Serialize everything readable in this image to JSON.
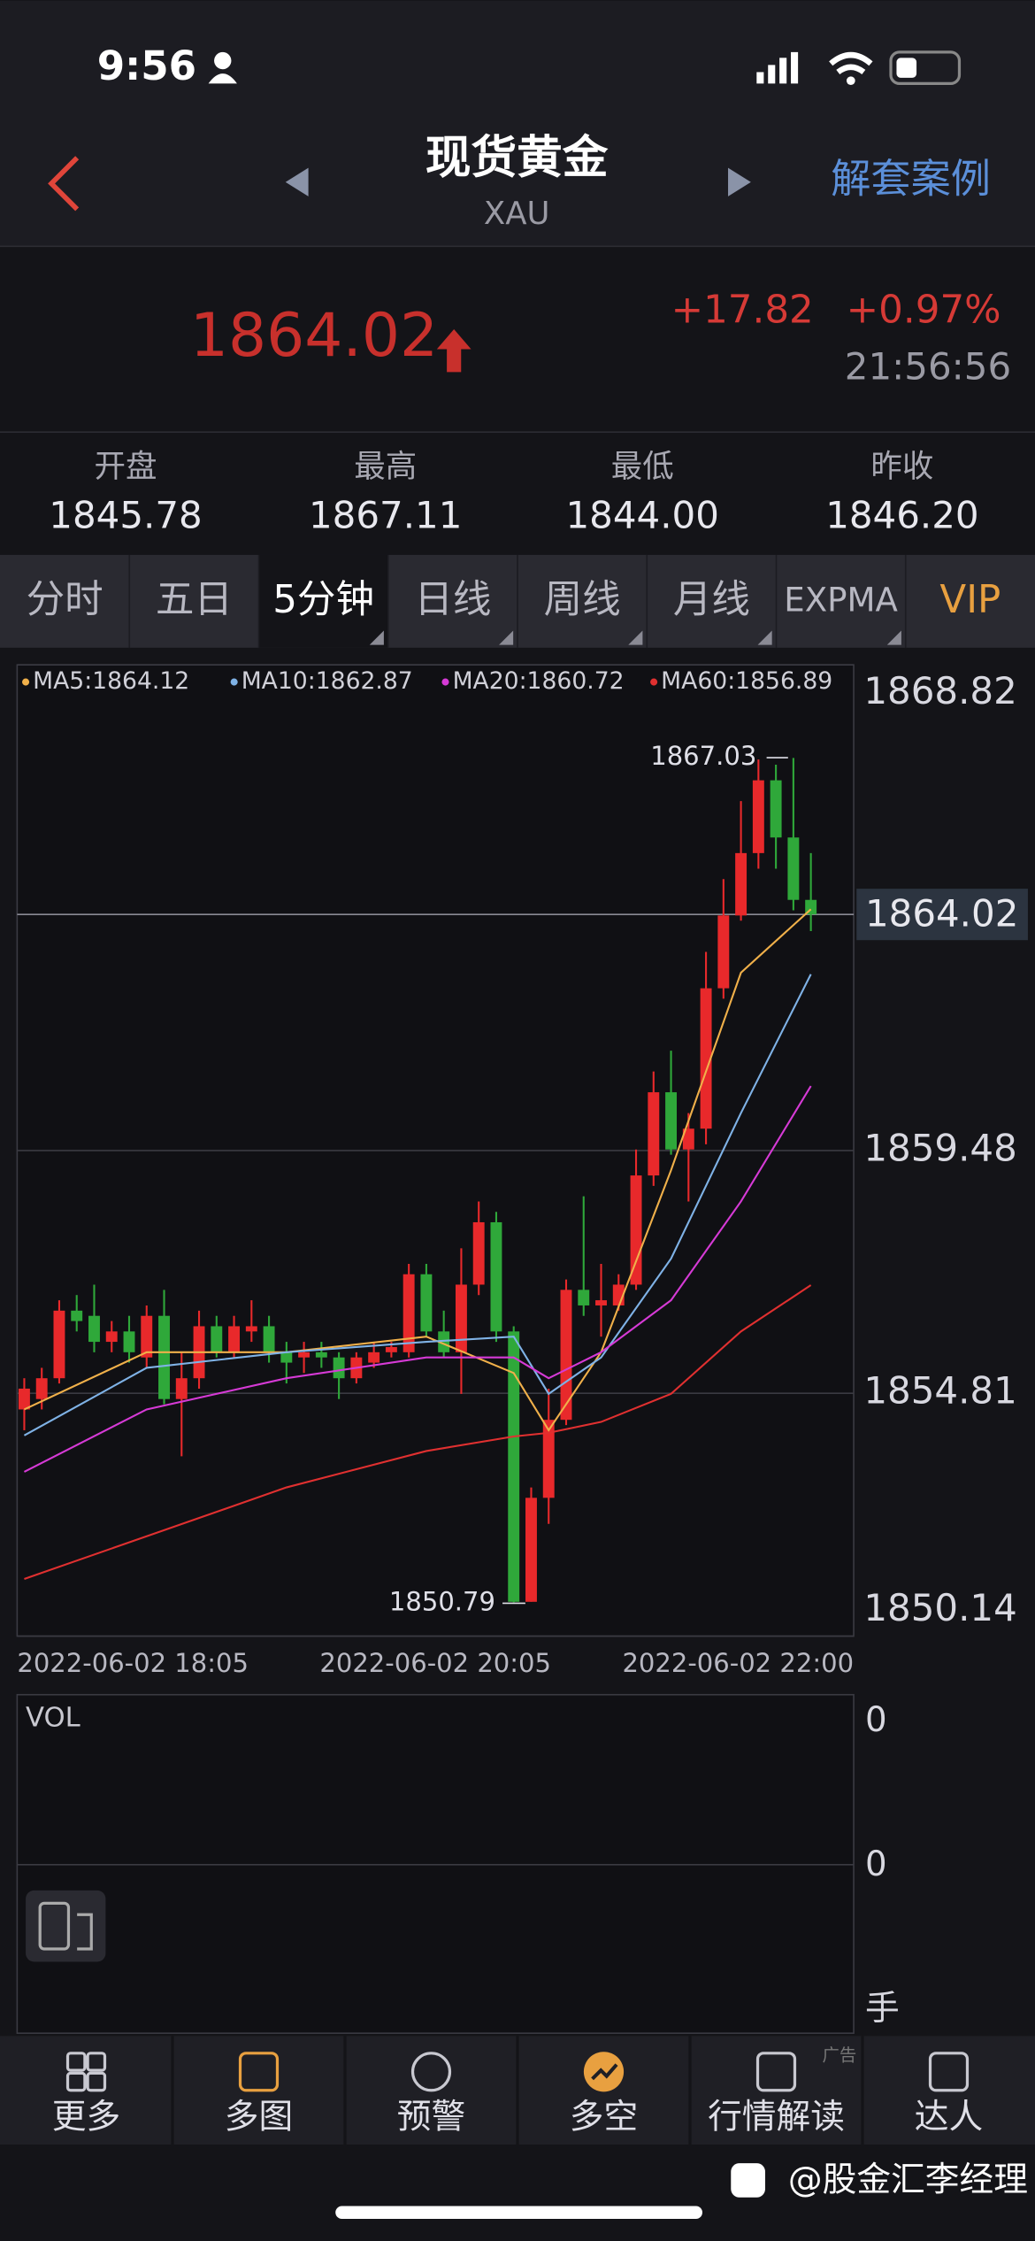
{
  "status_bar": {
    "time": "9:56"
  },
  "header": {
    "title": "现货黄金",
    "subtitle": "XAU",
    "action": "解套案例"
  },
  "quote": {
    "price": "1864.02",
    "change": "+17.82",
    "change_pct": "+0.97%",
    "time": "21:56:56"
  },
  "stats": [
    {
      "label": "开盘",
      "value": "1845.78"
    },
    {
      "label": "最高",
      "value": "1867.11"
    },
    {
      "label": "最低",
      "value": "1844.00"
    },
    {
      "label": "昨收",
      "value": "1846.20"
    }
  ],
  "tabs": [
    "分时",
    "五日",
    "5分钟",
    "日线",
    "周线",
    "月线",
    "EXPMA",
    "VIP"
  ],
  "chart_data": {
    "type": "candlestick",
    "up_color": "#e8292b",
    "down_color": "#2fa83a",
    "x_labels": [
      "2022-06-02 18:05",
      "2022-06-02 20:05",
      "2022-06-02 22:00"
    ],
    "ylim": [
      1850.14,
      1868.82
    ],
    "yticks": [
      1850.14,
      1854.81,
      1859.48,
      1868.82
    ],
    "last_price": 1864.02,
    "max_label": "1867.03",
    "min_label": "1850.79",
    "candles": {
      "open": [
        1854.5,
        1854.7,
        1855.1,
        1856.4,
        1856.3,
        1855.8,
        1856.0,
        1855.5,
        1856.3,
        1854.7,
        1855.1,
        1856.1,
        1855.6,
        1856.0,
        1856.1,
        1855.6,
        1855.5,
        1855.6,
        1855.5,
        1855.1,
        1855.4,
        1855.6,
        1855.6,
        1857.1,
        1856.0,
        1855.6,
        1856.9,
        1858.1,
        1856.0,
        1850.8,
        1852.8,
        1854.3,
        1856.8,
        1856.5,
        1856.5,
        1856.9,
        1859.0,
        1860.6,
        1859.5,
        1859.9,
        1862.6,
        1864.0,
        1865.2,
        1866.6,
        1865.5,
        1864.3
      ],
      "high": [
        1855.1,
        1855.3,
        1856.6,
        1856.7,
        1856.9,
        1856.2,
        1856.3,
        1856.5,
        1856.8,
        1855.6,
        1856.4,
        1856.3,
        1856.3,
        1856.6,
        1856.3,
        1855.8,
        1855.8,
        1855.8,
        1855.6,
        1855.6,
        1855.8,
        1855.8,
        1857.3,
        1857.3,
        1856.4,
        1857.6,
        1858.5,
        1858.3,
        1856.1,
        1853.0,
        1854.9,
        1857.0,
        1858.6,
        1857.3,
        1857.1,
        1859.5,
        1861.0,
        1861.4,
        1860.2,
        1863.3,
        1864.7,
        1866.2,
        1867.0,
        1866.9,
        1867.03,
        1865.2
      ],
      "low": [
        1854.1,
        1854.5,
        1855.0,
        1856.0,
        1855.6,
        1855.6,
        1855.4,
        1855.3,
        1854.6,
        1853.6,
        1854.9,
        1855.5,
        1855.5,
        1855.8,
        1855.4,
        1855.0,
        1855.2,
        1855.3,
        1854.7,
        1855.0,
        1855.3,
        1855.5,
        1855.5,
        1855.9,
        1855.5,
        1854.8,
        1856.7,
        1855.8,
        1850.79,
        1850.8,
        1852.3,
        1854.2,
        1856.3,
        1855.9,
        1856.4,
        1856.8,
        1858.8,
        1859.4,
        1858.5,
        1859.6,
        1862.4,
        1863.9,
        1864.9,
        1864.9,
        1864.1,
        1863.7
      ],
      "close": [
        1854.9,
        1855.1,
        1856.4,
        1856.2,
        1855.8,
        1856.0,
        1855.6,
        1856.3,
        1854.7,
        1855.1,
        1856.1,
        1855.6,
        1856.1,
        1856.1,
        1855.6,
        1855.4,
        1855.6,
        1855.5,
        1855.1,
        1855.5,
        1855.6,
        1855.7,
        1857.1,
        1856.0,
        1855.6,
        1856.9,
        1858.1,
        1856.0,
        1850.8,
        1852.8,
        1854.3,
        1856.8,
        1856.5,
        1856.6,
        1856.9,
        1859.0,
        1860.6,
        1859.5,
        1859.9,
        1862.6,
        1864.0,
        1865.2,
        1866.6,
        1865.5,
        1864.3,
        1864.02
      ]
    },
    "ma_x": [
      0,
      7,
      15,
      23,
      28,
      30,
      33,
      37,
      41,
      45
    ],
    "series": [
      {
        "name": "MA5:1864.12",
        "color": "#f0b04a",
        "values": [
          1854.5,
          1855.6,
          1855.6,
          1855.9,
          1855.2,
          1854.1,
          1855.6,
          1859.1,
          1862.9,
          1864.12
        ]
      },
      {
        "name": "MA10:1862.87",
        "color": "#7fb2e6",
        "values": [
          1854.0,
          1855.3,
          1855.6,
          1855.8,
          1855.9,
          1854.8,
          1855.5,
          1857.4,
          1860.2,
          1862.87
        ]
      },
      {
        "name": "MA20:1860.72",
        "color": "#d63ad6",
        "values": [
          1853.3,
          1854.5,
          1855.1,
          1855.5,
          1855.5,
          1855.1,
          1855.6,
          1856.6,
          1858.5,
          1860.72
        ]
      },
      {
        "name": "MA60:1856.89",
        "color": "#e03030",
        "values": [
          1851.24,
          1852.06,
          1853.0,
          1853.7,
          1853.98,
          1854.05,
          1854.26,
          1854.8,
          1856.0,
          1856.89
        ]
      }
    ]
  },
  "volume": {
    "title": "VOL",
    "axis_labels": [
      "0",
      "0",
      "手"
    ]
  },
  "nav": [
    "更多",
    "多图",
    "预警",
    "多空",
    "行情解读",
    "达人"
  ],
  "ad_tag": "广告",
  "watermark": "@股金汇李经理"
}
